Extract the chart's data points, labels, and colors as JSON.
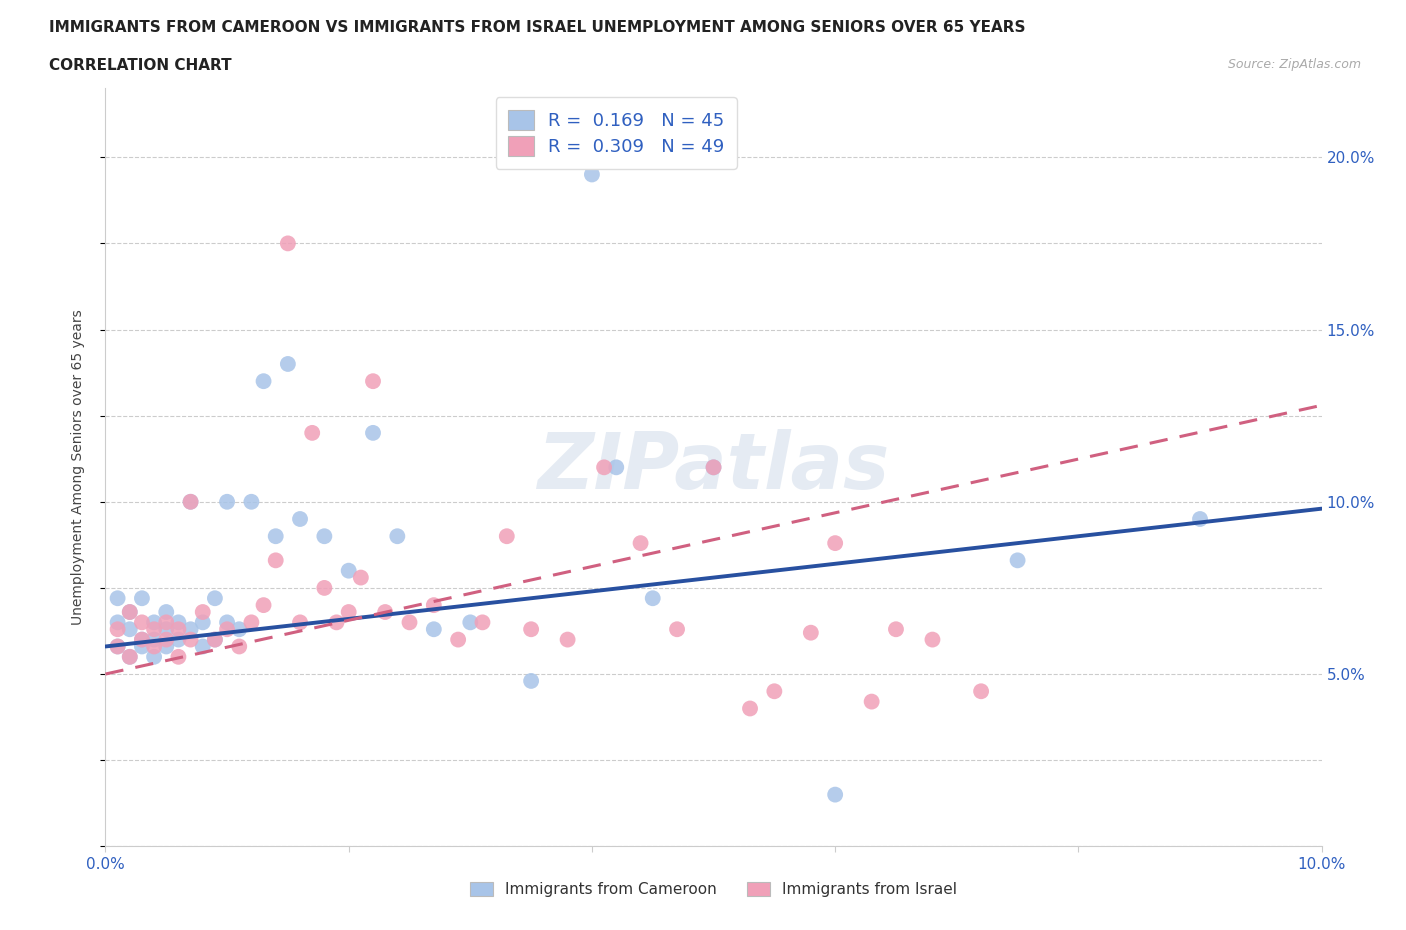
{
  "title_line1": "IMMIGRANTS FROM CAMEROON VS IMMIGRANTS FROM ISRAEL UNEMPLOYMENT AMONG SENIORS OVER 65 YEARS",
  "title_line2": "CORRELATION CHART",
  "source_text": "Source: ZipAtlas.com",
  "ylabel": "Unemployment Among Seniors over 65 years",
  "xlim": [
    0.0,
    0.1
  ],
  "ylim": [
    0.0,
    0.22
  ],
  "xticks": [
    0.0,
    0.02,
    0.04,
    0.06,
    0.08,
    0.1
  ],
  "yticks": [
    0.0,
    0.05,
    0.1,
    0.15,
    0.2
  ],
  "xtick_labels": [
    "0.0%",
    "",
    "",
    "",
    "",
    "10.0%"
  ],
  "ytick_labels": [
    "",
    "5.0%",
    "10.0%",
    "15.0%",
    "20.0%"
  ],
  "legend_label1": "Immigrants from Cameroon",
  "legend_label2": "Immigrants from Israel",
  "blue_scatter_color": "#a8c4e8",
  "pink_scatter_color": "#f0a0b8",
  "blue_line_color": "#2850a0",
  "pink_line_color": "#d06080",
  "watermark": "ZIPatlas",
  "blue_trend_x0": 0.0,
  "blue_trend_y0": 0.058,
  "blue_trend_x1": 0.1,
  "blue_trend_y1": 0.098,
  "pink_trend_x0": 0.0,
  "pink_trend_y0": 0.05,
  "pink_trend_x1": 0.1,
  "pink_trend_y1": 0.128,
  "cameroon_x": [
    0.001,
    0.001,
    0.001,
    0.002,
    0.002,
    0.002,
    0.003,
    0.003,
    0.003,
    0.004,
    0.004,
    0.004,
    0.005,
    0.005,
    0.005,
    0.006,
    0.006,
    0.007,
    0.007,
    0.008,
    0.008,
    0.009,
    0.009,
    0.01,
    0.01,
    0.011,
    0.012,
    0.013,
    0.014,
    0.015,
    0.016,
    0.018,
    0.02,
    0.022,
    0.024,
    0.027,
    0.03,
    0.035,
    0.04,
    0.042,
    0.045,
    0.05,
    0.06,
    0.075,
    0.09
  ],
  "cameroon_y": [
    0.065,
    0.072,
    0.058,
    0.063,
    0.068,
    0.055,
    0.06,
    0.072,
    0.058,
    0.065,
    0.06,
    0.055,
    0.068,
    0.063,
    0.058,
    0.065,
    0.06,
    0.063,
    0.1,
    0.065,
    0.058,
    0.06,
    0.072,
    0.065,
    0.1,
    0.063,
    0.1,
    0.135,
    0.09,
    0.14,
    0.095,
    0.09,
    0.08,
    0.12,
    0.09,
    0.063,
    0.065,
    0.048,
    0.195,
    0.11,
    0.072,
    0.11,
    0.015,
    0.083,
    0.095
  ],
  "israel_x": [
    0.001,
    0.001,
    0.002,
    0.002,
    0.003,
    0.003,
    0.004,
    0.004,
    0.005,
    0.005,
    0.006,
    0.006,
    0.007,
    0.007,
    0.008,
    0.009,
    0.01,
    0.011,
    0.012,
    0.013,
    0.014,
    0.015,
    0.016,
    0.017,
    0.018,
    0.019,
    0.02,
    0.021,
    0.022,
    0.023,
    0.025,
    0.027,
    0.029,
    0.031,
    0.033,
    0.035,
    0.038,
    0.041,
    0.044,
    0.047,
    0.05,
    0.053,
    0.055,
    0.058,
    0.06,
    0.063,
    0.065,
    0.068,
    0.072
  ],
  "israel_y": [
    0.063,
    0.058,
    0.068,
    0.055,
    0.06,
    0.065,
    0.058,
    0.063,
    0.065,
    0.06,
    0.063,
    0.055,
    0.1,
    0.06,
    0.068,
    0.06,
    0.063,
    0.058,
    0.065,
    0.07,
    0.083,
    0.175,
    0.065,
    0.12,
    0.075,
    0.065,
    0.068,
    0.078,
    0.135,
    0.068,
    0.065,
    0.07,
    0.06,
    0.065,
    0.09,
    0.063,
    0.06,
    0.11,
    0.088,
    0.063,
    0.11,
    0.04,
    0.045,
    0.062,
    0.088,
    0.042,
    0.063,
    0.06,
    0.045
  ]
}
